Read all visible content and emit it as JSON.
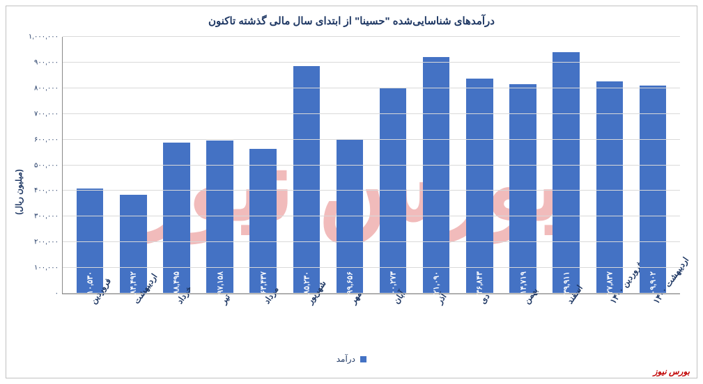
{
  "chart": {
    "type": "bar",
    "title": "درآمدهای شناسایی‌شده \"حسینا\" از ابتدای سال مالی گذشته تاکنون",
    "title_fontsize": 15,
    "title_color": "#1f3864",
    "ylabel": "(میلیون ریال)",
    "ylabel_fontsize": 12,
    "ylim": [
      0,
      1000000
    ],
    "ytick_step": 100000,
    "yticks": [
      0,
      100000,
      200000,
      300000,
      400000,
      500000,
      600000,
      700000,
      800000,
      900000,
      1000000
    ],
    "ytick_labels": [
      "۰",
      "۱۰۰,۰۰۰",
      "۲۰۰,۰۰۰",
      "۳۰۰,۰۰۰",
      "۴۰۰,۰۰۰",
      "۵۰۰,۰۰۰",
      "۶۰۰,۰۰۰",
      "۷۰۰,۰۰۰",
      "۸۰۰,۰۰۰",
      "۹۰۰,۰۰۰",
      "۱,۰۰۰,۰۰۰"
    ],
    "categories": [
      "فروردین",
      "اردیبهشت",
      "خرداد",
      "تیر",
      "مرداد",
      "شهریور",
      "مهر",
      "آبان",
      "آذر",
      "دی",
      "بهمن",
      "اسفند",
      "فروردین ۱۴۰۰",
      "اردیبهشت ۱۴۰۰"
    ],
    "values": [
      410530,
      384492,
      588495,
      597158,
      563437,
      885230,
      599656,
      800273,
      921090,
      836843,
      814719,
      939911,
      827837,
      809902
    ],
    "value_labels": [
      "۴۱۰,۵۳۰",
      "۳۸۴,۴۹۲",
      "۵۸۸,۴۹۵",
      "۵۹۷,۱۵۸",
      "۵۶۳,۴۳۷",
      "۸۸۵,۲۳۰",
      "۵۹۹,۶۵۶",
      "۸۰۰,۲۷۳",
      "۹۲۱,۰۹۰",
      "۸۳۶,۸۴۳",
      "۸۱۴,۷۱۹",
      "۹۳۹,۹۱۱",
      "۸۲۷,۸۳۷",
      "۸۰۹,۹۰۲"
    ],
    "bar_color": "#4472c4",
    "grid_color": "#d9d9d9",
    "background_color": "#ffffff",
    "axis_color": "#888888",
    "label_color": "#1f3864",
    "value_label_color": "#ffffff",
    "bar_width": 0.62,
    "legend_label": "درآمد",
    "legend_swatch_color": "#4472c4"
  },
  "watermark": {
    "text": "بورس نیوز",
    "color": "#e26b6b",
    "opacity": 0.45
  },
  "footer": {
    "brand": "بورس نیوز",
    "color": "#c00000"
  }
}
